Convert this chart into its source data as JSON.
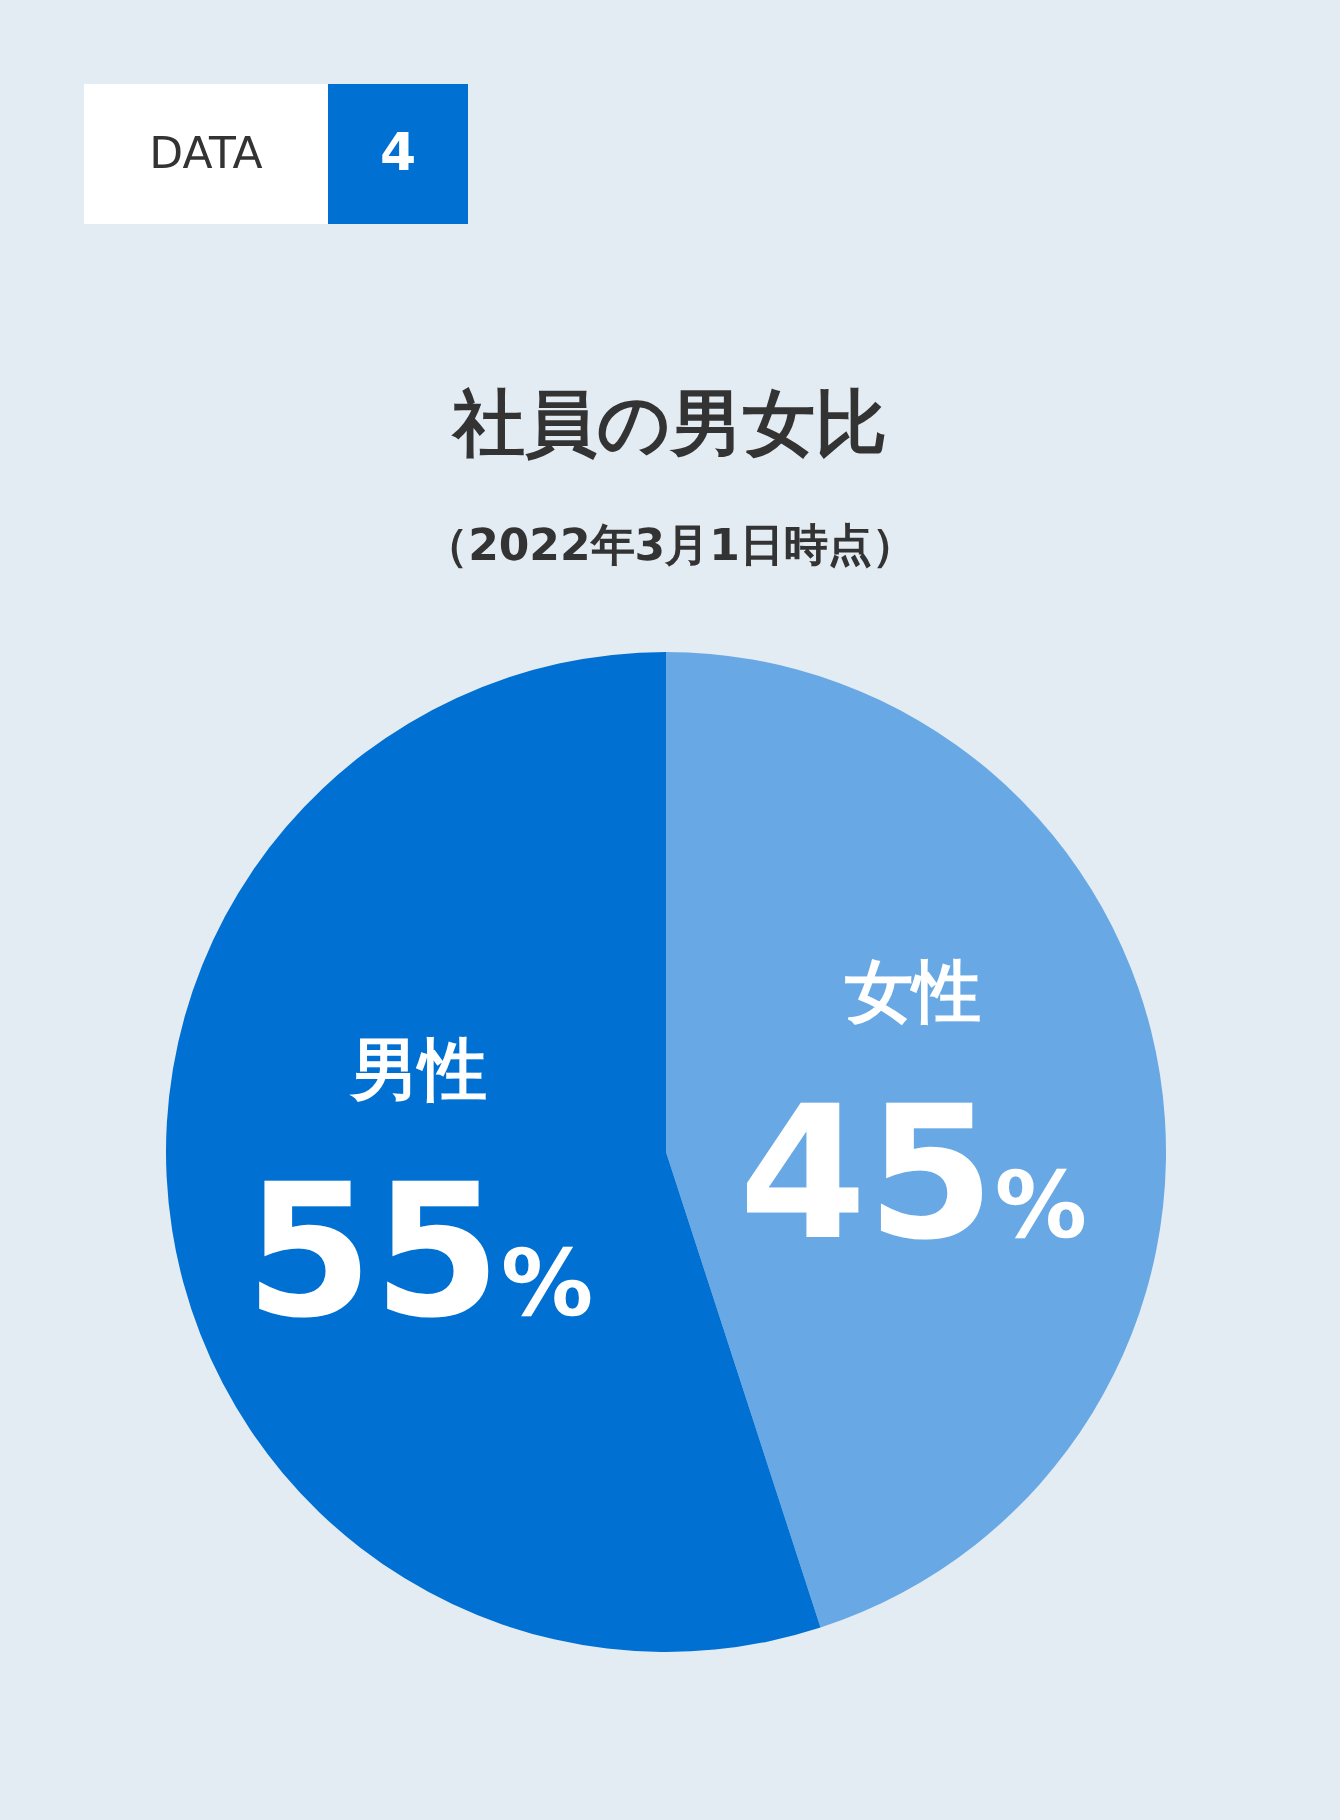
{
  "chart_data": {
    "type": "pie",
    "title": "社員の男女比",
    "subtitle": "（2022年3月1日時点）",
    "annotations": [
      "DATA",
      "4"
    ],
    "categories": [
      "女性",
      "男性"
    ],
    "values": [
      45,
      55
    ],
    "colors": [
      "#68a8e4",
      "#0070d2"
    ],
    "value_labels": [
      "45%",
      "55%"
    ],
    "legend": false
  }
}
